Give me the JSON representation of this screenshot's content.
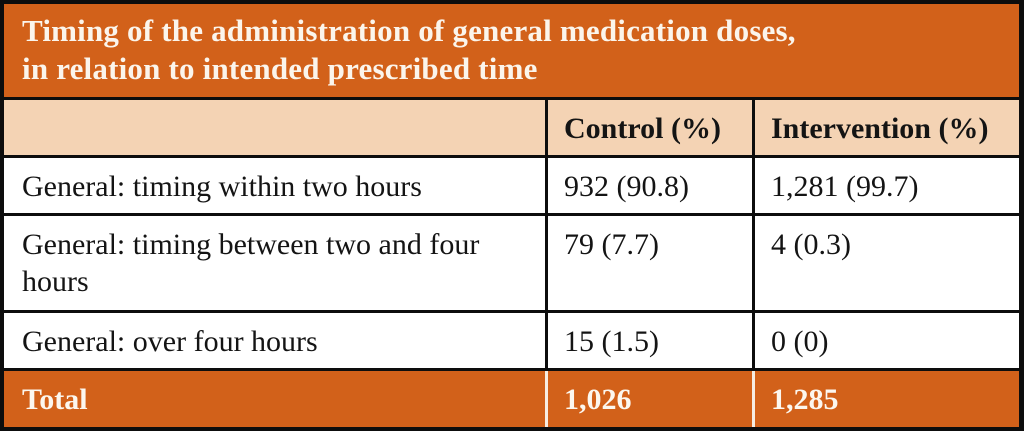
{
  "title": {
    "line1": "Timing of the administration of general medication doses,",
    "line2": "in relation to intended prescribed time"
  },
  "table": {
    "columns": [
      "",
      "Control (%)",
      "Intervention (%)"
    ],
    "rows": [
      {
        "label": "General: timing within two hours",
        "control": "932 (90.8)",
        "intervention": "1,281 (99.7)"
      },
      {
        "label": "General: timing between two and four hours",
        "control": "79 (7.7)",
        "intervention": "4 (0.3)"
      },
      {
        "label": "General: over four hours",
        "control": "15 (1.5)",
        "intervention": "0 (0)"
      }
    ],
    "total": {
      "label": "Total",
      "control": "1,026",
      "intervention": "1,285"
    }
  },
  "colors": {
    "accent_orange": "#d2611a",
    "header_peach": "#f4d3b4",
    "border_black": "#0d0d0d",
    "light_text": "#fbf5ec",
    "body_text": "#141414"
  },
  "chart_data": {
    "type": "table",
    "title": "Timing of the administration of general medication doses, in relation to intended prescribed time",
    "columns": [
      "",
      "Control (%)",
      "Intervention (%)"
    ],
    "categories": [
      "General: timing within two hours",
      "General: timing between two and four hours",
      "General: over four hours",
      "Total"
    ],
    "series": [
      {
        "name": "Control",
        "counts": [
          932,
          79,
          15,
          1026
        ],
        "percents": [
          90.8,
          7.7,
          1.5,
          null
        ]
      },
      {
        "name": "Intervention",
        "counts": [
          1281,
          4,
          0,
          1285
        ],
        "percents": [
          99.7,
          0.3,
          0,
          null
        ]
      }
    ],
    "cells": [
      [
        "General: timing within two hours",
        "932 (90.8)",
        "1,281 (99.7)"
      ],
      [
        "General: timing between two and four hours",
        "79 (7.7)",
        "4 (0.3)"
      ],
      [
        "General: over four hours",
        "15 (1.5)",
        "0 (0)"
      ],
      [
        "Total",
        "1,026",
        "1,285"
      ]
    ]
  }
}
